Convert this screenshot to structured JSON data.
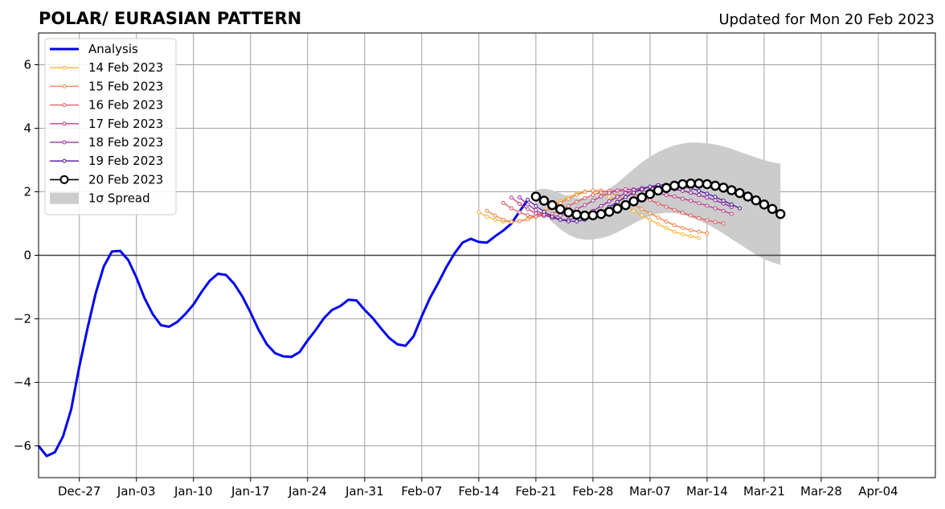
{
  "chart_data": {
    "type": "line",
    "title": "POLAR/ EURASIAN  PATTERN",
    "subtitle": "Updated for Mon 20 Feb 2023",
    "xlabel": "",
    "ylabel": "",
    "ylim": [
      -7,
      7
    ],
    "xlim": [
      "2022-12-22",
      "2023-04-11"
    ],
    "yticks": [
      -6,
      -4,
      -2,
      0,
      2,
      4,
      6
    ],
    "ytick_labels": [
      "−6",
      "−4",
      "−2",
      "0",
      "2",
      "4",
      "6"
    ],
    "xticks": [
      "2022-12-27",
      "2023-01-03",
      "2023-01-10",
      "2023-01-17",
      "2023-01-24",
      "2023-01-31",
      "2023-02-07",
      "2023-02-14",
      "2023-02-21",
      "2023-02-28",
      "2023-03-07",
      "2023-03-14",
      "2023-03-21",
      "2023-03-28",
      "2023-04-04"
    ],
    "xtick_labels": [
      "Dec-27",
      "Jan-03",
      "Jan-10",
      "Jan-17",
      "Jan-24",
      "Jan-31",
      "Feb-07",
      "Feb-14",
      "Feb-21",
      "Feb-28",
      "Mar-07",
      "Mar-14",
      "Mar-21",
      "Mar-28",
      "Apr-04"
    ],
    "grid": true,
    "legend_position": "top-left",
    "analysis": {
      "name": "Analysis",
      "color": "#0000ee",
      "start": "2022-12-22",
      "values": [
        -6.0,
        -6.32,
        -6.2,
        -5.7,
        -4.85,
        -3.5,
        -2.3,
        -1.2,
        -0.35,
        0.12,
        0.14,
        -0.15,
        -0.7,
        -1.35,
        -1.85,
        -2.2,
        -2.25,
        -2.1,
        -1.85,
        -1.55,
        -1.15,
        -0.8,
        -0.58,
        -0.62,
        -0.9,
        -1.3,
        -1.8,
        -2.35,
        -2.8,
        -3.08,
        -3.18,
        -3.2,
        -3.05,
        -2.68,
        -2.35,
        -1.98,
        -1.72,
        -1.6,
        -1.4,
        -1.42,
        -1.72,
        -1.98,
        -2.3,
        -2.6,
        -2.8,
        -2.85,
        -2.55,
        -1.92,
        -1.35,
        -0.88,
        -0.38,
        0.05,
        0.4,
        0.52,
        0.42,
        0.4,
        0.6,
        0.78,
        1.0,
        1.38,
        1.75
      ]
    },
    "forecasts": [
      {
        "name": "14 Feb 2023",
        "color": "#f9b233",
        "start": "2023-02-14",
        "values": [
          1.35,
          1.22,
          1.12,
          1.06,
          1.05,
          1.08,
          1.15,
          1.26,
          1.4,
          1.55,
          1.7,
          1.83,
          1.94,
          2.01,
          2.02,
          1.97,
          1.85,
          1.7,
          1.55,
          1.4,
          1.26,
          1.12,
          0.98,
          0.86,
          0.74,
          0.66,
          0.6,
          0.55
        ]
      },
      {
        "name": "15 Feb 2023",
        "color": "#f0834a",
        "start": "2023-02-15",
        "values": [
          1.4,
          1.25,
          1.12,
          1.06,
          1.07,
          1.13,
          1.22,
          1.35,
          1.5,
          1.65,
          1.78,
          1.9,
          1.99,
          2.04,
          2.04,
          1.99,
          1.88,
          1.75,
          1.6,
          1.46,
          1.32,
          1.19,
          1.06,
          0.95,
          0.86,
          0.79,
          0.74,
          0.7
        ]
      },
      {
        "name": "16 Feb 2023",
        "color": "#e0585f",
        "start": "2023-02-17",
        "values": [
          1.65,
          1.48,
          1.35,
          1.26,
          1.22,
          1.24,
          1.31,
          1.42,
          1.55,
          1.68,
          1.8,
          1.9,
          1.98,
          2.03,
          2.04,
          2.0,
          1.93,
          1.84,
          1.74,
          1.63,
          1.53,
          1.43,
          1.34,
          1.25,
          1.17,
          1.1,
          1.05,
          1.0
        ]
      },
      {
        "name": "17 Feb 2023",
        "color": "#c03a8e",
        "start": "2023-02-18",
        "values": [
          1.82,
          1.62,
          1.45,
          1.32,
          1.24,
          1.22,
          1.25,
          1.33,
          1.45,
          1.58,
          1.72,
          1.85,
          1.96,
          2.04,
          2.08,
          2.08,
          2.05,
          2.0,
          1.95,
          1.9,
          1.85,
          1.78,
          1.72,
          1.64,
          1.56,
          1.48,
          1.4,
          1.3
        ]
      },
      {
        "name": "18 Feb 2023",
        "color": "#9025a0",
        "start": "2023-02-19",
        "values": [
          1.82,
          1.6,
          1.42,
          1.28,
          1.18,
          1.12,
          1.12,
          1.17,
          1.27,
          1.4,
          1.55,
          1.7,
          1.84,
          1.96,
          2.06,
          2.12,
          2.15,
          2.14,
          2.12,
          2.08,
          2.03,
          1.97,
          1.9,
          1.82,
          1.73,
          1.63,
          1.52
        ]
      },
      {
        "name": "19 Feb 2023",
        "color": "#4b12a0",
        "start": "2023-02-20",
        "values": [
          1.75,
          1.55,
          1.37,
          1.22,
          1.12,
          1.07,
          1.07,
          1.12,
          1.22,
          1.36,
          1.52,
          1.68,
          1.83,
          1.97,
          2.08,
          2.16,
          2.21,
          2.22,
          2.21,
          2.17,
          2.11,
          2.03,
          1.94,
          1.84,
          1.72,
          1.6,
          1.48
        ]
      },
      {
        "name": "20 Feb 2023",
        "color": "#000000",
        "start": "2023-02-21",
        "big_markers": true,
        "values": [
          1.85,
          1.72,
          1.58,
          1.45,
          1.35,
          1.28,
          1.25,
          1.26,
          1.3,
          1.37,
          1.47,
          1.58,
          1.7,
          1.82,
          1.93,
          2.04,
          2.12,
          2.19,
          2.24,
          2.26,
          2.26,
          2.24,
          2.19,
          2.13,
          2.05,
          1.96,
          1.85,
          1.73,
          1.6,
          1.46,
          1.3
        ]
      }
    ],
    "spread": {
      "name": "1σ Spread",
      "color": "#cccccc",
      "start": "2023-02-21",
      "upper": [
        2.05,
        2.1,
        2.05,
        1.95,
        1.85,
        1.8,
        1.8,
        1.85,
        1.95,
        2.1,
        2.28,
        2.5,
        2.72,
        2.93,
        3.1,
        3.25,
        3.37,
        3.46,
        3.52,
        3.55,
        3.55,
        3.53,
        3.49,
        3.43,
        3.35,
        3.26,
        3.17,
        3.08,
        3.0,
        2.93,
        2.88
      ],
      "lower": [
        1.65,
        1.32,
        1.05,
        0.82,
        0.65,
        0.54,
        0.49,
        0.5,
        0.54,
        0.61,
        0.72,
        0.86,
        1.0,
        1.13,
        1.24,
        1.31,
        1.34,
        1.33,
        1.28,
        1.2,
        1.1,
        0.98,
        0.84,
        0.68,
        0.51,
        0.35,
        0.18,
        0.02,
        -0.12,
        -0.22,
        -0.3
      ]
    },
    "legend": [
      "Analysis",
      "14 Feb 2023",
      "15 Feb 2023",
      "16 Feb 2023",
      "17 Feb 2023",
      "18 Feb 2023",
      "19 Feb 2023",
      "20 Feb 2023",
      "1σ Spread"
    ]
  }
}
